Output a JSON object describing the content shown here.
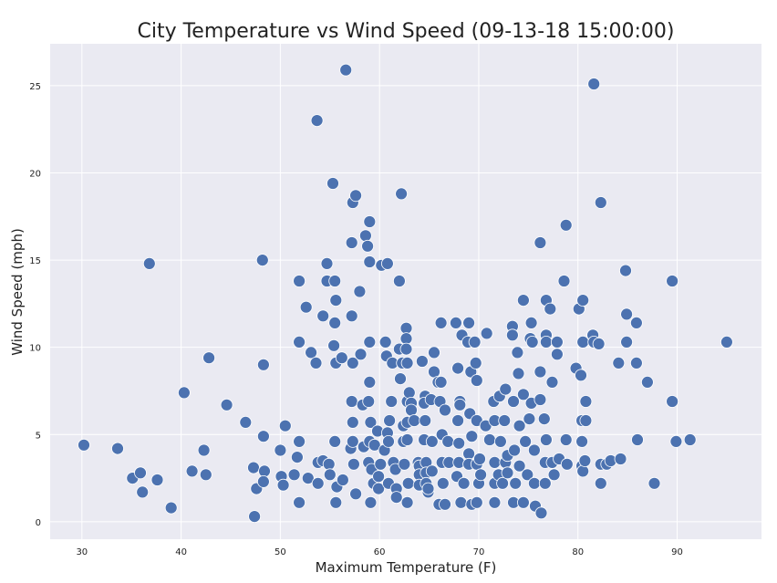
{
  "chart_data": {
    "type": "scatter",
    "title": "City Temperature vs Wind Speed (09-13-18 15:00:00)",
    "xlabel": "Maximum Temperature (F)",
    "ylabel": "Wind Speed (mph)",
    "xlim": [
      26.8,
      98.5
    ],
    "ylim": [
      -1.0,
      27.4
    ],
    "xticks": [
      30,
      40,
      50,
      60,
      70,
      80,
      90
    ],
    "yticks": [
      0,
      5,
      10,
      15,
      20,
      25
    ],
    "grid": true,
    "background_color": "#eaeaf2",
    "grid_color": "#ffffff",
    "marker_color": "#4c72b0",
    "marker_edge_color": "#ffffff",
    "points": [
      [
        30.2,
        4.4
      ],
      [
        33.6,
        4.2
      ],
      [
        35.1,
        2.5
      ],
      [
        35.9,
        2.8
      ],
      [
        36.1,
        1.7
      ],
      [
        36.8,
        14.8
      ],
      [
        37.6,
        2.4
      ],
      [
        39.0,
        0.8
      ],
      [
        40.3,
        7.4
      ],
      [
        41.1,
        2.9
      ],
      [
        42.3,
        4.1
      ],
      [
        42.5,
        2.7
      ],
      [
        42.8,
        9.4
      ],
      [
        44.6,
        6.7
      ],
      [
        46.5,
        5.7
      ],
      [
        47.3,
        3.1
      ],
      [
        47.4,
        0.3
      ],
      [
        47.6,
        1.9
      ],
      [
        48.2,
        15.0
      ],
      [
        48.3,
        9.0
      ],
      [
        48.3,
        4.9
      ],
      [
        48.4,
        2.9
      ],
      [
        48.3,
        2.3
      ],
      [
        50.0,
        4.1
      ],
      [
        50.1,
        2.6
      ],
      [
        50.3,
        2.1
      ],
      [
        50.5,
        5.5
      ],
      [
        51.4,
        2.7
      ],
      [
        51.7,
        3.7
      ],
      [
        51.9,
        4.6
      ],
      [
        51.9,
        10.3
      ],
      [
        51.9,
        13.8
      ],
      [
        51.9,
        1.1
      ],
      [
        52.6,
        12.3
      ],
      [
        52.8,
        2.5
      ],
      [
        53.1,
        9.7
      ],
      [
        53.7,
        23.0
      ],
      [
        53.6,
        9.1
      ],
      [
        53.8,
        3.4
      ],
      [
        53.8,
        2.2
      ],
      [
        54.3,
        3.5
      ],
      [
        54.3,
        11.8
      ],
      [
        54.7,
        14.8
      ],
      [
        54.7,
        13.8
      ],
      [
        54.9,
        3.3
      ],
      [
        55.0,
        2.7
      ],
      [
        55.3,
        19.4
      ],
      [
        55.5,
        13.8
      ],
      [
        55.6,
        12.7
      ],
      [
        55.5,
        11.4
      ],
      [
        55.4,
        10.1
      ],
      [
        55.6,
        9.1
      ],
      [
        55.5,
        4.6
      ],
      [
        55.6,
        1.1
      ],
      [
        55.7,
        2.0
      ],
      [
        56.2,
        9.4
      ],
      [
        56.3,
        2.4
      ],
      [
        56.6,
        25.9
      ],
      [
        57.1,
        4.2
      ],
      [
        57.2,
        11.8
      ],
      [
        57.3,
        18.3
      ],
      [
        57.6,
        18.7
      ],
      [
        57.2,
        16.0
      ],
      [
        57.3,
        9.1
      ],
      [
        57.2,
        6.9
      ],
      [
        57.3,
        5.7
      ],
      [
        57.3,
        4.6
      ],
      [
        57.4,
        3.3
      ],
      [
        57.6,
        1.6
      ],
      [
        58.0,
        13.2
      ],
      [
        58.1,
        9.6
      ],
      [
        58.3,
        6.7
      ],
      [
        58.4,
        4.3
      ],
      [
        58.6,
        16.4
      ],
      [
        58.8,
        15.8
      ],
      [
        59.0,
        17.2
      ],
      [
        59.0,
        14.9
      ],
      [
        59.0,
        10.3
      ],
      [
        59.0,
        8.0
      ],
      [
        58.9,
        6.9
      ],
      [
        59.1,
        5.7
      ],
      [
        59.0,
        4.6
      ],
      [
        58.9,
        3.4
      ],
      [
        59.2,
        3.0
      ],
      [
        59.1,
        1.1
      ],
      [
        59.4,
        2.2
      ],
      [
        59.5,
        4.4
      ],
      [
        59.8,
        5.2
      ],
      [
        59.9,
        2.6
      ],
      [
        59.9,
        1.9
      ],
      [
        60.1,
        3.3
      ],
      [
        60.2,
        14.7
      ],
      [
        60.5,
        4.1
      ],
      [
        60.8,
        14.8
      ],
      [
        60.6,
        10.3
      ],
      [
        60.7,
        9.5
      ],
      [
        60.8,
        5.1
      ],
      [
        60.9,
        4.6
      ],
      [
        60.9,
        2.2
      ],
      [
        61.0,
        5.8
      ],
      [
        61.2,
        6.9
      ],
      [
        61.3,
        9.1
      ],
      [
        61.4,
        3.4
      ],
      [
        61.6,
        3.0
      ],
      [
        61.7,
        1.9
      ],
      [
        61.7,
        1.4
      ],
      [
        62.0,
        9.9
      ],
      [
        62.0,
        13.8
      ],
      [
        62.1,
        8.2
      ],
      [
        62.2,
        18.8
      ],
      [
        62.3,
        9.1
      ],
      [
        62.4,
        5.5
      ],
      [
        62.4,
        4.6
      ],
      [
        62.5,
        3.3
      ],
      [
        62.7,
        11.1
      ],
      [
        62.7,
        10.5
      ],
      [
        62.7,
        9.9
      ],
      [
        62.8,
        9.1
      ],
      [
        62.8,
        5.7
      ],
      [
        62.8,
        6.9
      ],
      [
        62.8,
        4.7
      ],
      [
        62.8,
        1.1
      ],
      [
        62.9,
        2.2
      ],
      [
        63.0,
        7.4
      ],
      [
        63.2,
        6.8
      ],
      [
        63.2,
        6.4
      ],
      [
        63.5,
        5.8
      ],
      [
        63.9,
        3.4
      ],
      [
        64.0,
        3.2
      ],
      [
        64.0,
        2.7
      ],
      [
        64.0,
        2.1
      ],
      [
        64.3,
        9.2
      ],
      [
        64.5,
        4.7
      ],
      [
        64.6,
        7.2
      ],
      [
        64.5,
        6.8
      ],
      [
        64.6,
        5.8
      ],
      [
        64.7,
        3.4
      ],
      [
        64.7,
        2.8
      ],
      [
        64.7,
        2.2
      ],
      [
        64.9,
        1.7
      ],
      [
        64.9,
        1.9
      ],
      [
        65.2,
        7.0
      ],
      [
        65.3,
        2.9
      ],
      [
        65.3,
        4.6
      ],
      [
        65.5,
        9.7
      ],
      [
        65.5,
        8.6
      ],
      [
        65.9,
        8.0
      ],
      [
        66.0,
        1.0
      ],
      [
        66.1,
        6.9
      ],
      [
        66.2,
        11.4
      ],
      [
        66.2,
        8.0
      ],
      [
        66.3,
        5.0
      ],
      [
        66.3,
        3.4
      ],
      [
        66.4,
        2.2
      ],
      [
        66.6,
        1.0
      ],
      [
        66.6,
        6.4
      ],
      [
        66.9,
        4.6
      ],
      [
        67.0,
        3.4
      ],
      [
        67.7,
        11.4
      ],
      [
        67.8,
        2.6
      ],
      [
        67.9,
        8.8
      ],
      [
        67.9,
        5.8
      ],
      [
        68.0,
        4.5
      ],
      [
        68.0,
        3.4
      ],
      [
        68.1,
        6.9
      ],
      [
        68.1,
        6.7
      ],
      [
        68.2,
        1.1
      ],
      [
        68.3,
        10.7
      ],
      [
        68.5,
        2.2
      ],
      [
        68.9,
        10.3
      ],
      [
        69.0,
        11.4
      ],
      [
        69.0,
        3.9
      ],
      [
        69.0,
        3.3
      ],
      [
        69.1,
        6.2
      ],
      [
        69.2,
        8.6
      ],
      [
        69.3,
        4.9
      ],
      [
        69.3,
        1.0
      ],
      [
        69.6,
        10.3
      ],
      [
        69.7,
        9.1
      ],
      [
        69.8,
        8.1
      ],
      [
        69.8,
        5.8
      ],
      [
        69.8,
        3.3
      ],
      [
        69.8,
        1.1
      ],
      [
        70.0,
        2.2
      ],
      [
        70.1,
        3.6
      ],
      [
        70.2,
        2.7
      ],
      [
        70.8,
        10.8
      ],
      [
        70.7,
        5.5
      ],
      [
        71.1,
        4.7
      ],
      [
        71.5,
        6.9
      ],
      [
        71.6,
        5.8
      ],
      [
        71.6,
        3.4
      ],
      [
        71.6,
        2.2
      ],
      [
        71.6,
        1.1
      ],
      [
        72.0,
        2.7
      ],
      [
        72.1,
        7.2
      ],
      [
        72.2,
        4.6
      ],
      [
        72.4,
        2.2
      ],
      [
        72.7,
        7.6
      ],
      [
        72.6,
        5.8
      ],
      [
        72.7,
        3.4
      ],
      [
        72.9,
        2.8
      ],
      [
        72.9,
        3.8
      ],
      [
        73.4,
        11.2
      ],
      [
        73.4,
        10.7
      ],
      [
        73.5,
        6.9
      ],
      [
        73.6,
        4.1
      ],
      [
        73.5,
        1.1
      ],
      [
        73.7,
        2.2
      ],
      [
        73.9,
        9.7
      ],
      [
        74.0,
        8.5
      ],
      [
        74.1,
        5.5
      ],
      [
        74.1,
        3.2
      ],
      [
        74.5,
        12.7
      ],
      [
        74.5,
        7.3
      ],
      [
        74.5,
        1.1
      ],
      [
        74.7,
        4.6
      ],
      [
        74.9,
        2.7
      ],
      [
        75.1,
        5.9
      ],
      [
        75.2,
        10.5
      ],
      [
        75.3,
        11.4
      ],
      [
        75.4,
        10.3
      ],
      [
        75.3,
        6.8
      ],
      [
        75.6,
        2.2
      ],
      [
        75.6,
        4.1
      ],
      [
        75.7,
        0.9
      ],
      [
        76.2,
        16.0
      ],
      [
        76.2,
        8.6
      ],
      [
        76.2,
        7.0
      ],
      [
        76.3,
        0.5
      ],
      [
        76.6,
        5.9
      ],
      [
        76.8,
        4.7
      ],
      [
        76.7,
        3.4
      ],
      [
        76.7,
        2.2
      ],
      [
        76.8,
        12.7
      ],
      [
        76.8,
        10.7
      ],
      [
        76.8,
        10.3
      ],
      [
        77.2,
        12.2
      ],
      [
        77.4,
        8.0
      ],
      [
        77.4,
        3.4
      ],
      [
        77.6,
        2.7
      ],
      [
        77.9,
        10.3
      ],
      [
        77.9,
        9.6
      ],
      [
        78.1,
        3.6
      ],
      [
        78.6,
        13.8
      ],
      [
        78.8,
        17.0
      ],
      [
        78.8,
        4.7
      ],
      [
        78.9,
        3.3
      ],
      [
        79.8,
        8.8
      ],
      [
        80.1,
        12.2
      ],
      [
        80.3,
        8.4
      ],
      [
        80.5,
        12.7
      ],
      [
        80.5,
        10.3
      ],
      [
        80.4,
        4.6
      ],
      [
        80.4,
        5.8
      ],
      [
        80.4,
        3.2
      ],
      [
        80.5,
        2.9
      ],
      [
        80.7,
        3.5
      ],
      [
        80.8,
        6.9
      ],
      [
        80.8,
        5.8
      ],
      [
        81.6,
        25.1
      ],
      [
        81.5,
        10.7
      ],
      [
        81.6,
        10.3
      ],
      [
        82.1,
        10.2
      ],
      [
        82.3,
        18.3
      ],
      [
        82.3,
        2.2
      ],
      [
        82.3,
        3.3
      ],
      [
        82.9,
        3.3
      ],
      [
        83.3,
        3.5
      ],
      [
        84.1,
        9.1
      ],
      [
        84.3,
        3.6
      ],
      [
        84.8,
        14.4
      ],
      [
        84.9,
        11.9
      ],
      [
        84.9,
        10.3
      ],
      [
        85.9,
        11.4
      ],
      [
        85.9,
        9.1
      ],
      [
        86.0,
        4.7
      ],
      [
        87.0,
        8.0
      ],
      [
        87.7,
        2.2
      ],
      [
        89.5,
        13.8
      ],
      [
        89.5,
        6.9
      ],
      [
        89.9,
        4.6
      ],
      [
        91.3,
        4.7
      ],
      [
        95.0,
        10.3
      ]
    ]
  }
}
